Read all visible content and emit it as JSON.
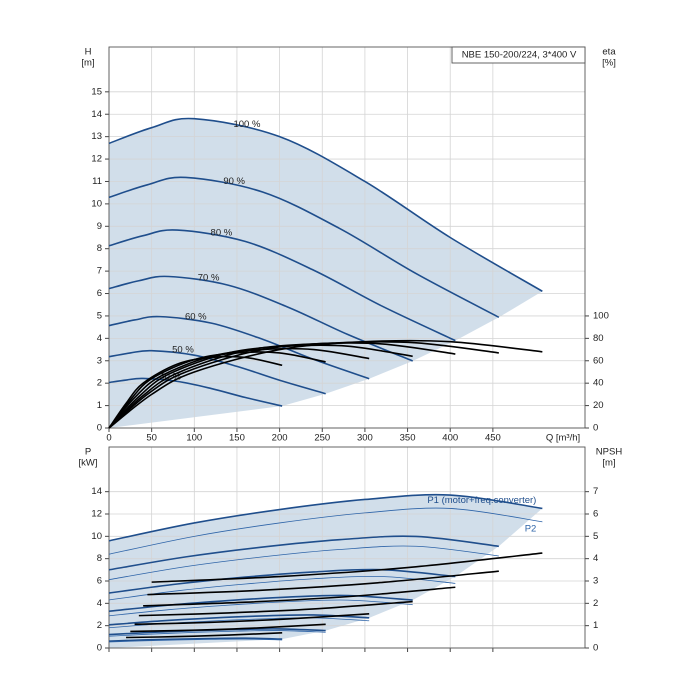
{
  "chart_data": [
    {
      "type": "line",
      "title": "NBE 150-200/224, 3*400 V",
      "x_label": "Q [m³/h]",
      "y_label": "H",
      "y_unit": "[m]",
      "y2_label": "eta",
      "y2_unit": "[%]",
      "xlim": [
        0,
        558
      ],
      "xticks": [
        0,
        50,
        100,
        150,
        200,
        250,
        300,
        350,
        400,
        450
      ],
      "ylim": [
        0,
        17
      ],
      "yticks": [
        0,
        1,
        2,
        3,
        4,
        5,
        6,
        7,
        8,
        9,
        10,
        11,
        12,
        13,
        14,
        15
      ],
      "y2lim": [
        0,
        340
      ],
      "y2ticks": [
        0,
        20,
        40,
        60,
        80,
        100
      ],
      "grid": true,
      "shaded": true,
      "x_tick_labels": true,
      "series": [
        {
          "name": "100 %",
          "color": "#1f4e8c",
          "line_style": "thick",
          "x": [
            0,
            50,
            100,
            200,
            300,
            400,
            508
          ],
          "values": [
            12.7,
            13.4,
            13.8,
            13.0,
            11.0,
            8.5,
            6.1
          ]
        },
        {
          "name": "90 %",
          "color": "#1f4e8c",
          "line_style": "thick",
          "x": [
            0,
            45,
            90,
            180,
            270,
            360,
            457
          ],
          "values": [
            10.29,
            10.85,
            11.18,
            10.53,
            8.91,
            6.89,
            4.94
          ]
        },
        {
          "name": "80 %",
          "color": "#1f4e8c",
          "line_style": "thick",
          "x": [
            0,
            40,
            80,
            160,
            240,
            320,
            406
          ],
          "values": [
            8.13,
            8.58,
            8.83,
            8.32,
            7.04,
            5.44,
            3.9
          ]
        },
        {
          "name": "70 %",
          "color": "#1f4e8c",
          "line_style": "thick",
          "x": [
            0,
            35,
            70,
            140,
            210,
            280,
            356
          ],
          "values": [
            6.22,
            6.57,
            6.76,
            6.37,
            5.39,
            4.17,
            2.99
          ]
        },
        {
          "name": "60 %",
          "color": "#1f4e8c",
          "line_style": "thick",
          "x": [
            0,
            30,
            60,
            120,
            180,
            240,
            305
          ],
          "values": [
            4.57,
            4.82,
            4.97,
            4.68,
            3.96,
            3.06,
            2.2
          ]
        },
        {
          "name": "50 %",
          "color": "#1f4e8c",
          "line_style": "thick",
          "x": [
            0,
            25,
            50,
            100,
            150,
            200,
            254
          ],
          "values": [
            3.18,
            3.35,
            3.45,
            3.25,
            2.75,
            2.13,
            1.53
          ]
        },
        {
          "name": "40 %",
          "color": "#1f4e8c",
          "line_style": "thick",
          "x": [
            0,
            20,
            40,
            80,
            120,
            160,
            203
          ],
          "values": [
            2.03,
            2.14,
            2.21,
            2.08,
            1.76,
            1.36,
            0.98
          ]
        },
        {
          "axis": "y2",
          "color": "#000000",
          "line_style": "thick",
          "x": [
            0,
            50,
            100,
            200,
            300,
            400,
            508
          ],
          "values": [
            0,
            30,
            50,
            70,
            77,
            77,
            68
          ]
        },
        {
          "axis": "y2",
          "color": "#000000",
          "line_style": "thick",
          "x": [
            0,
            45,
            90,
            180,
            270,
            360,
            457
          ],
          "values": [
            0,
            30,
            50,
            70,
            76,
            76,
            67
          ]
        },
        {
          "axis": "y2",
          "color": "#000000",
          "line_style": "thick",
          "x": [
            0,
            40,
            80,
            160,
            240,
            320,
            406
          ],
          "values": [
            0,
            29,
            49,
            69,
            75,
            75,
            66
          ]
        },
        {
          "axis": "y2",
          "color": "#000000",
          "line_style": "thick",
          "x": [
            0,
            35,
            70,
            140,
            210,
            280,
            356
          ],
          "values": [
            0,
            28,
            48,
            67,
            73,
            73,
            64
          ]
        },
        {
          "axis": "y2",
          "color": "#000000",
          "line_style": "thick",
          "x": [
            0,
            30,
            60,
            120,
            180,
            240,
            305
          ],
          "values": [
            0,
            27,
            46,
            64,
            70,
            70,
            62
          ]
        },
        {
          "axis": "y2",
          "color": "#000000",
          "line_style": "thick",
          "x": [
            0,
            25,
            50,
            100,
            150,
            200,
            254
          ],
          "values": [
            0,
            25,
            44,
            61,
            67,
            67,
            59
          ]
        },
        {
          "axis": "y2",
          "color": "#000000",
          "line_style": "thick",
          "x": [
            0,
            20,
            40,
            80,
            120,
            160,
            203
          ],
          "values": [
            0,
            22,
            40,
            57,
            63,
            63,
            56
          ]
        }
      ]
    },
    {
      "type": "line",
      "y_label": "P",
      "y_unit": "[kW]",
      "y2_label": "NPSH",
      "y2_unit": "[m]",
      "xlim": [
        0,
        558
      ],
      "xticks": [
        0,
        50,
        100,
        150,
        200,
        250,
        300,
        350,
        400,
        450
      ],
      "ylim": [
        0,
        18
      ],
      "yticks": [
        0,
        2,
        4,
        6,
        8,
        10,
        12,
        14
      ],
      "y2lim": [
        0,
        9
      ],
      "y2ticks": [
        0,
        1,
        2,
        3,
        4,
        5,
        6,
        7
      ],
      "grid": true,
      "shaded": true,
      "x_tick_labels": false,
      "series": [
        {
          "name": "P1 (motor+freq.converter)",
          "color": "#1f4e8c",
          "line_style": "thick",
          "x": [
            0,
            100,
            200,
            300,
            400,
            508
          ],
          "values": [
            9.6,
            11.2,
            12.4,
            13.3,
            13.7,
            12.5
          ]
        },
        {
          "color": "#1f4e8c",
          "line_style": "thick",
          "x": [
            0,
            90,
            180,
            270,
            360,
            457
          ],
          "values": [
            7.0,
            8.16,
            9.04,
            9.7,
            9.99,
            9.11
          ]
        },
        {
          "color": "#1f4e8c",
          "line_style": "thick",
          "x": [
            0,
            80,
            160,
            240,
            320,
            406
          ],
          "values": [
            4.92,
            5.73,
            6.35,
            6.81,
            7.01,
            6.4
          ]
        },
        {
          "color": "#1f4e8c",
          "line_style": "thick",
          "x": [
            0,
            70,
            140,
            210,
            280,
            356
          ],
          "values": [
            3.29,
            3.84,
            4.25,
            4.56,
            4.7,
            4.29
          ]
        },
        {
          "color": "#1f4e8c",
          "line_style": "thick",
          "x": [
            0,
            60,
            120,
            180,
            240,
            305
          ],
          "values": [
            2.07,
            2.42,
            2.68,
            2.87,
            2.96,
            2.7
          ]
        },
        {
          "color": "#1f4e8c",
          "line_style": "thick",
          "x": [
            0,
            50,
            100,
            150,
            200,
            254
          ],
          "values": [
            1.2,
            1.4,
            1.55,
            1.66,
            1.71,
            1.56
          ]
        },
        {
          "color": "#1f4e8c",
          "line_style": "thick",
          "x": [
            0,
            40,
            80,
            120,
            160,
            203
          ],
          "values": [
            0.61,
            0.72,
            0.79,
            0.85,
            0.88,
            0.8
          ]
        },
        {
          "name": "P2",
          "color": "#2e64a8",
          "line_style": "thin",
          "x": [
            0,
            100,
            200,
            300,
            400,
            508
          ],
          "values": [
            8.4,
            10.0,
            11.2,
            12.1,
            12.5,
            11.3
          ]
        },
        {
          "color": "#2e64a8",
          "line_style": "thin",
          "x": [
            0,
            90,
            180,
            270,
            360,
            457
          ],
          "values": [
            6.12,
            7.29,
            8.16,
            8.82,
            9.11,
            8.24
          ]
        },
        {
          "color": "#2e64a8",
          "line_style": "thin",
          "x": [
            0,
            80,
            160,
            240,
            320,
            406
          ],
          "values": [
            4.3,
            5.12,
            5.73,
            6.2,
            6.4,
            5.79
          ]
        },
        {
          "color": "#2e64a8",
          "line_style": "thin",
          "x": [
            0,
            70,
            140,
            210,
            280,
            356
          ],
          "values": [
            2.88,
            3.43,
            3.84,
            4.15,
            4.29,
            3.88
          ]
        },
        {
          "color": "#2e64a8",
          "line_style": "thin",
          "x": [
            0,
            60,
            120,
            180,
            240,
            305
          ],
          "values": [
            1.81,
            2.16,
            2.42,
            2.61,
            2.7,
            2.44
          ]
        },
        {
          "color": "#2e64a8",
          "line_style": "thin",
          "x": [
            0,
            50,
            100,
            150,
            200,
            254
          ],
          "values": [
            1.05,
            1.25,
            1.4,
            1.51,
            1.56,
            1.41
          ]
        },
        {
          "color": "#2e64a8",
          "line_style": "thin",
          "x": [
            0,
            40,
            80,
            120,
            160,
            203
          ],
          "values": [
            0.54,
            0.64,
            0.72,
            0.77,
            0.8,
            0.72
          ]
        },
        {
          "axis": "y2",
          "color": "#000000",
          "line_style": "thick",
          "x": [
            50,
            200,
            350,
            508
          ],
          "values": [
            2.95,
            3.2,
            3.6,
            4.25
          ]
        },
        {
          "axis": "y2",
          "color": "#000000",
          "line_style": "thick",
          "x": [
            45,
            180,
            315,
            457
          ],
          "values": [
            2.39,
            2.59,
            2.92,
            3.44
          ]
        },
        {
          "axis": "y2",
          "color": "#000000",
          "line_style": "thick",
          "x": [
            40,
            160,
            280,
            406
          ],
          "values": [
            1.89,
            2.05,
            2.3,
            2.72
          ]
        },
        {
          "axis": "y2",
          "color": "#000000",
          "line_style": "thick",
          "x": [
            35,
            140,
            245,
            356
          ],
          "values": [
            1.45,
            1.57,
            1.76,
            2.08
          ]
        },
        {
          "axis": "y2",
          "color": "#000000",
          "line_style": "thick",
          "x": [
            30,
            120,
            210,
            305
          ],
          "values": [
            1.06,
            1.15,
            1.3,
            1.53
          ]
        },
        {
          "axis": "y2",
          "color": "#000000",
          "line_style": "thick",
          "x": [
            25,
            100,
            175,
            254
          ],
          "values": [
            0.74,
            0.8,
            0.9,
            1.06
          ]
        },
        {
          "axis": "y2",
          "color": "#000000",
          "line_style": "thick",
          "x": [
            20,
            80,
            140,
            203
          ],
          "values": [
            0.47,
            0.51,
            0.58,
            0.68
          ]
        }
      ]
    }
  ]
}
